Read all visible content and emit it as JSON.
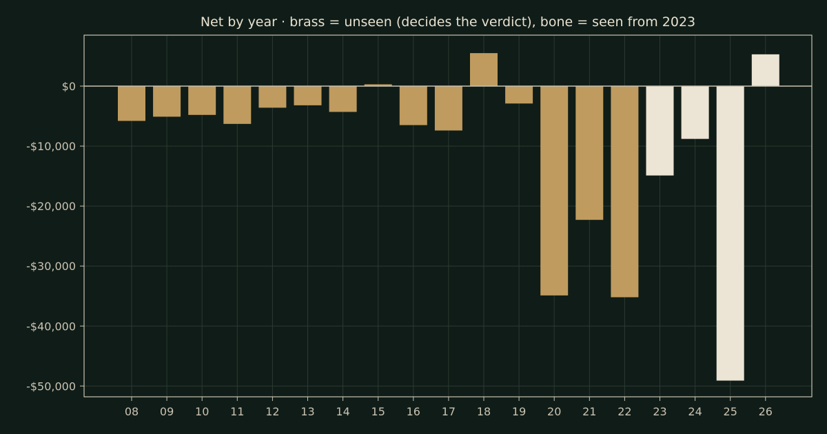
{
  "chart_data": {
    "type": "bar",
    "title": "Net by year  ·  brass = unseen (decides the verdict), bone = seen from 2023",
    "xlabel": "",
    "ylabel": "",
    "categories": [
      "08",
      "09",
      "10",
      "11",
      "12",
      "13",
      "14",
      "15",
      "16",
      "17",
      "18",
      "19",
      "20",
      "21",
      "22",
      "23",
      "24",
      "25",
      "26"
    ],
    "values": [
      -5800,
      -5100,
      -4800,
      -6300,
      -3600,
      -3200,
      -4300,
      300,
      -6500,
      -7400,
      5500,
      -2900,
      -34900,
      -22300,
      -35200,
      -14900,
      -8800,
      -49100,
      5300
    ],
    "bar_group": [
      "unseen",
      "unseen",
      "unseen",
      "unseen",
      "unseen",
      "unseen",
      "unseen",
      "unseen",
      "unseen",
      "unseen",
      "unseen",
      "unseen",
      "unseen",
      "unseen",
      "unseen",
      "seen",
      "seen",
      "seen",
      "seen"
    ],
    "colors": {
      "unseen": "#bf9b5f",
      "seen": "#ece4d4",
      "background": "#101c17",
      "grid": "#2b3a33",
      "axis": "#c9c3b3"
    },
    "ylim": [
      -51800,
      8500
    ],
    "yticks": [
      0,
      -10000,
      -20000,
      -30000,
      -40000,
      -50000
    ],
    "ytick_labels": [
      "$0",
      "-$10,000",
      "-$20,000",
      "-$30,000",
      "-$40,000",
      "-$50,000"
    ],
    "grid": true,
    "legend": "none"
  }
}
